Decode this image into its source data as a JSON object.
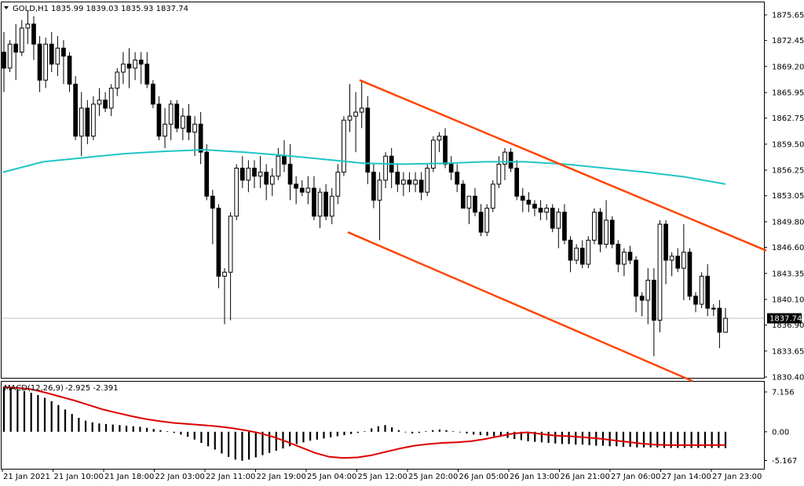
{
  "header": {
    "symbol": "GOLD,H1",
    "ohlc": "1835.99 1839.03 1835.93 1837.74",
    "menu_icon": "triangle-down-icon"
  },
  "indicator": {
    "name": "MACD(12,26,9)",
    "values": "-2.925 -2.391",
    "ticks": [
      "7.156",
      "0.00",
      "-5.167"
    ]
  },
  "colors": {
    "bull_body": "#ffffff",
    "bear_body": "#000000",
    "wick": "#000000",
    "ma_line": "#20c5c5",
    "channel": "#ff4500",
    "macd_signal": "#dd0000",
    "price_line": "#c0c0c0",
    "price_tag_bg": "#000000",
    "price_tag_text": "#ffffff"
  },
  "chart_data": {
    "type": "candlestick",
    "symbol": "GOLD",
    "timeframe": "H1",
    "ylim": [
      1830.4,
      1877.0
    ],
    "y_ticks": [
      "1875.65",
      "1872.45",
      "1869.20",
      "1865.95",
      "1862.75",
      "1859.50",
      "1856.25",
      "1853.05",
      "1849.80",
      "1846.60",
      "1843.35",
      "1840.10",
      "1836.90",
      "1833.65",
      "1830.40"
    ],
    "x_ticks": [
      "21 Jan 2021",
      "21 Jan 10:00",
      "21 Jan 18:00",
      "22 Jan 03:00",
      "22 Jan 11:00",
      "22 Jan 19:00",
      "25 Jan 04:00",
      "25 Jan 12:00",
      "25 Jan 20:00",
      "26 Jan 05:00",
      "26 Jan 13:00",
      "26 Jan 21:00",
      "27 Jan 06:00",
      "27 Jan 14:00",
      "27 Jan 23:00"
    ],
    "current_price": 1837.74,
    "current_price_label": "1837.74",
    "candles": [
      [
        1871.0,
        1873.5,
        1866.0,
        1869.0
      ],
      [
        1869.0,
        1872.5,
        1868.5,
        1872.0
      ],
      [
        1872.0,
        1874.5,
        1867.5,
        1871.0
      ],
      [
        1871.0,
        1875.0,
        1870.5,
        1874.0
      ],
      [
        1874.0,
        1876.2,
        1872.0,
        1874.5
      ],
      [
        1874.5,
        1875.5,
        1870.0,
        1872.0
      ],
      [
        1872.0,
        1873.0,
        1866.0,
        1867.5
      ],
      [
        1867.5,
        1872.8,
        1866.5,
        1872.0
      ],
      [
        1872.0,
        1873.5,
        1868.5,
        1869.5
      ],
      [
        1869.5,
        1873.0,
        1868.0,
        1871.5
      ],
      [
        1871.5,
        1872.5,
        1867.0,
        1870.5
      ],
      [
        1870.5,
        1871.0,
        1866.0,
        1867.0
      ],
      [
        1867.0,
        1868.0,
        1860.0,
        1860.5
      ],
      [
        1860.5,
        1866.0,
        1858.0,
        1864.0
      ],
      [
        1864.0,
        1865.0,
        1859.5,
        1860.5
      ],
      [
        1860.5,
        1865.5,
        1860.0,
        1864.5
      ],
      [
        1864.5,
        1866.5,
        1863.0,
        1865.0
      ],
      [
        1865.0,
        1866.0,
        1863.5,
        1864.0
      ],
      [
        1864.0,
        1867.0,
        1863.0,
        1866.5
      ],
      [
        1866.5,
        1869.0,
        1865.5,
        1868.5
      ],
      [
        1868.5,
        1871.0,
        1867.0,
        1869.5
      ],
      [
        1869.5,
        1871.5,
        1866.5,
        1869.0
      ],
      [
        1869.0,
        1871.0,
        1867.5,
        1870.0
      ],
      [
        1870.0,
        1871.0,
        1867.0,
        1869.5
      ],
      [
        1869.5,
        1871.0,
        1866.5,
        1867.0
      ],
      [
        1867.0,
        1867.5,
        1864.0,
        1864.5
      ],
      [
        1864.5,
        1865.5,
        1860.0,
        1860.5
      ],
      [
        1860.5,
        1864.0,
        1859.0,
        1862.0
      ],
      [
        1862.0,
        1865.0,
        1860.0,
        1864.5
      ],
      [
        1864.5,
        1865.0,
        1861.0,
        1861.5
      ],
      [
        1861.5,
        1864.0,
        1860.0,
        1863.0
      ],
      [
        1863.0,
        1864.5,
        1860.0,
        1861.0
      ],
      [
        1861.0,
        1863.0,
        1858.0,
        1862.0
      ],
      [
        1862.0,
        1863.5,
        1857.0,
        1858.5
      ],
      [
        1858.5,
        1859.5,
        1852.5,
        1853.0
      ],
      [
        1853.0,
        1853.8,
        1847.0,
        1851.5
      ],
      [
        1851.5,
        1852.0,
        1841.5,
        1843.0
      ],
      [
        1843.0,
        1844.0,
        1837.0,
        1843.5
      ],
      [
        1843.5,
        1851.0,
        1837.5,
        1850.5
      ],
      [
        1850.5,
        1857.0,
        1850.0,
        1856.5
      ],
      [
        1856.5,
        1858.0,
        1854.0,
        1855.0
      ],
      [
        1855.0,
        1857.5,
        1853.5,
        1856.5
      ],
      [
        1856.5,
        1857.5,
        1854.0,
        1855.5
      ],
      [
        1855.5,
        1858.0,
        1854.0,
        1856.0
      ],
      [
        1856.0,
        1857.0,
        1852.5,
        1854.5
      ],
      [
        1854.5,
        1856.5,
        1853.0,
        1855.5
      ],
      [
        1855.5,
        1859.0,
        1855.0,
        1858.0
      ],
      [
        1858.0,
        1860.0,
        1856.0,
        1857.0
      ],
      [
        1857.0,
        1859.5,
        1852.5,
        1854.5
      ],
      [
        1854.5,
        1855.5,
        1852.0,
        1854.0
      ],
      [
        1854.0,
        1855.0,
        1853.0,
        1853.5
      ],
      [
        1853.5,
        1855.5,
        1852.0,
        1854.0
      ],
      [
        1854.0,
        1855.5,
        1850.0,
        1850.5
      ],
      [
        1850.5,
        1854.0,
        1849.0,
        1853.5
      ],
      [
        1853.5,
        1854.5,
        1850.0,
        1850.5
      ],
      [
        1850.5,
        1854.0,
        1849.5,
        1853.0
      ],
      [
        1853.0,
        1857.0,
        1852.0,
        1856.0
      ],
      [
        1856.0,
        1863.0,
        1855.5,
        1862.5
      ],
      [
        1862.5,
        1867.0,
        1861.0,
        1863.0
      ],
      [
        1863.0,
        1866.0,
        1858.5,
        1863.5
      ],
      [
        1863.5,
        1867.5,
        1861.5,
        1864.0
      ],
      [
        1864.0,
        1865.5,
        1854.5,
        1856.0
      ],
      [
        1856.0,
        1857.0,
        1851.5,
        1852.5
      ],
      [
        1852.5,
        1856.0,
        1847.5,
        1855.0
      ],
      [
        1855.0,
        1858.5,
        1854.0,
        1858.0
      ],
      [
        1858.0,
        1859.0,
        1854.0,
        1856.0
      ],
      [
        1856.0,
        1857.0,
        1853.5,
        1854.5
      ],
      [
        1854.5,
        1856.0,
        1853.0,
        1855.0
      ],
      [
        1855.0,
        1856.0,
        1853.5,
        1854.5
      ],
      [
        1854.5,
        1856.0,
        1853.5,
        1855.0
      ],
      [
        1855.0,
        1856.0,
        1852.5,
        1853.5
      ],
      [
        1853.5,
        1857.0,
        1853.0,
        1856.5
      ],
      [
        1856.5,
        1860.5,
        1856.0,
        1860.0
      ],
      [
        1860.0,
        1861.0,
        1858.5,
        1860.5
      ],
      [
        1860.5,
        1861.5,
        1856.5,
        1857.0
      ],
      [
        1857.0,
        1858.0,
        1855.0,
        1856.0
      ],
      [
        1856.0,
        1857.0,
        1853.5,
        1854.5
      ],
      [
        1854.5,
        1855.0,
        1851.5,
        1851.5
      ],
      [
        1851.5,
        1853.0,
        1849.5,
        1853.0
      ],
      [
        1853.0,
        1854.0,
        1850.5,
        1851.0
      ],
      [
        1851.0,
        1852.0,
        1848.0,
        1848.5
      ],
      [
        1848.5,
        1852.0,
        1848.0,
        1851.5
      ],
      [
        1851.5,
        1855.0,
        1851.0,
        1854.5
      ],
      [
        1854.5,
        1858.0,
        1854.0,
        1857.0
      ],
      [
        1857.0,
        1859.0,
        1855.0,
        1858.5
      ],
      [
        1858.5,
        1859.0,
        1856.0,
        1856.5
      ],
      [
        1856.5,
        1857.5,
        1852.5,
        1853.0
      ],
      [
        1853.0,
        1854.0,
        1851.0,
        1852.5
      ],
      [
        1852.5,
        1853.5,
        1851.0,
        1852.0
      ],
      [
        1852.0,
        1852.5,
        1850.5,
        1851.5
      ],
      [
        1851.5,
        1852.5,
        1850.0,
        1851.0
      ],
      [
        1851.0,
        1852.0,
        1850.0,
        1851.5
      ],
      [
        1851.5,
        1852.0,
        1848.5,
        1849.0
      ],
      [
        1849.0,
        1851.5,
        1846.5,
        1851.0
      ],
      [
        1851.0,
        1852.0,
        1847.0,
        1847.5
      ],
      [
        1847.5,
        1848.0,
        1843.5,
        1845.0
      ],
      [
        1845.0,
        1847.0,
        1844.5,
        1846.5
      ],
      [
        1846.5,
        1847.5,
        1844.0,
        1844.5
      ],
      [
        1844.5,
        1848.0,
        1844.0,
        1847.5
      ],
      [
        1847.5,
        1851.5,
        1847.0,
        1851.0
      ],
      [
        1851.0,
        1851.5,
        1846.0,
        1847.0
      ],
      [
        1847.0,
        1852.5,
        1846.5,
        1850.0
      ],
      [
        1850.0,
        1850.5,
        1846.5,
        1847.0
      ],
      [
        1847.0,
        1847.5,
        1843.5,
        1844.5
      ],
      [
        1844.5,
        1846.5,
        1843.0,
        1846.0
      ],
      [
        1846.0,
        1846.8,
        1844.5,
        1845.0
      ],
      [
        1845.0,
        1845.5,
        1838.5,
        1840.5
      ],
      [
        1840.5,
        1841.0,
        1838.0,
        1840.0
      ],
      [
        1840.0,
        1844.0,
        1837.0,
        1842.5
      ],
      [
        1842.5,
        1844.0,
        1833.0,
        1837.5
      ],
      [
        1837.5,
        1850.0,
        1836.0,
        1849.5
      ],
      [
        1849.5,
        1850.0,
        1842.0,
        1845.0
      ],
      [
        1845.0,
        1846.0,
        1843.0,
        1845.5
      ],
      [
        1845.5,
        1846.5,
        1843.5,
        1844.0
      ],
      [
        1844.0,
        1849.5,
        1840.0,
        1846.0
      ],
      [
        1846.0,
        1846.5,
        1840.0,
        1840.5
      ],
      [
        1840.5,
        1841.0,
        1838.5,
        1839.5
      ],
      [
        1839.5,
        1843.5,
        1839.0,
        1843.0
      ],
      [
        1843.0,
        1844.5,
        1838.0,
        1839.0
      ],
      [
        1839.0,
        1839.5,
        1838.0,
        1839.0
      ],
      [
        1839.0,
        1840.0,
        1834.0,
        1836.0
      ],
      [
        1835.99,
        1839.03,
        1835.93,
        1837.74
      ]
    ],
    "ma_series": [
      1856.0,
      1857.3,
      1857.8,
      1858.3,
      1858.6,
      1858.8,
      1858.5,
      1858.1,
      1857.6,
      1857.1,
      1857.0,
      1857.1,
      1857.3,
      1857.3,
      1857.0,
      1856.5,
      1856.0,
      1855.4,
      1854.5
    ],
    "channel_upper": [
      [
        1850.8,
        1867.5
      ],
      [
        1963.5,
        1846.2
      ]
    ],
    "channel_lower": [
      [
        1949.2,
        1848.5
      ],
      [
        1972.6,
        1829.9
      ]
    ],
    "macd_ylim": [
      -6.5,
      8.0
    ],
    "macd_hist": [
      8.1,
      7.9,
      7.6,
      7.3,
      7.0,
      6.6,
      6.1,
      5.5,
      4.8,
      4.0,
      3.2,
      2.5,
      2.0,
      1.7,
      1.5,
      1.4,
      1.3,
      1.2,
      1.1,
      1.0,
      0.9,
      0.7,
      0.5,
      0.3,
      0.1,
      -0.2,
      -0.5,
      -0.9,
      -1.4,
      -2.0,
      -2.6,
      -3.2,
      -3.9,
      -4.5,
      -5.0,
      -5.2,
      -5.0,
      -4.6,
      -4.2,
      -3.8,
      -3.4,
      -3.0,
      -2.6,
      -2.2,
      -1.9,
      -1.6,
      -1.4,
      -1.2,
      -1.0,
      -0.8,
      -0.6,
      -0.4,
      -0.2,
      0.1,
      0.6,
      1.0,
      1.2,
      0.8,
      0.3,
      -0.1,
      -0.3,
      -0.2,
      0.1,
      0.3,
      0.4,
      0.3,
      0.1,
      -0.1,
      -0.3,
      -0.5,
      -0.6,
      -0.7,
      -0.8,
      -0.9,
      -1.1,
      -1.3,
      -1.5,
      -1.7,
      -1.8,
      -1.9,
      -2.0,
      -2.1,
      -2.2,
      -2.2,
      -2.3,
      -2.3,
      -2.4,
      -2.5,
      -2.5,
      -2.6,
      -2.6,
      -2.7,
      -2.7,
      -2.8,
      -2.8,
      -2.8,
      -2.8,
      -2.9,
      -2.9,
      -2.9,
      -2.9,
      -2.9,
      -2.9,
      -2.9,
      -2.9,
      -2.9,
      -2.925
    ],
    "macd_signal": [
      8.0,
      7.9,
      7.6,
      7.0,
      6.3,
      5.6,
      4.8,
      4.0,
      3.4,
      2.8,
      2.3,
      1.9,
      1.6,
      1.4,
      1.2,
      1.0,
      0.7,
      0.3,
      -0.2,
      -0.9,
      -1.8,
      -2.8,
      -3.8,
      -4.5,
      -4.7,
      -4.6,
      -4.2,
      -3.6,
      -3.0,
      -2.5,
      -2.2,
      -2.0,
      -1.9,
      -1.7,
      -1.3,
      -0.8,
      -0.3,
      -0.1,
      -0.4,
      -0.7,
      -0.8,
      -1.0,
      -1.2,
      -1.5,
      -1.8,
      -2.1,
      -2.3,
      -2.4,
      -2.4,
      -2.4,
      -2.4,
      -2.391
    ]
  }
}
